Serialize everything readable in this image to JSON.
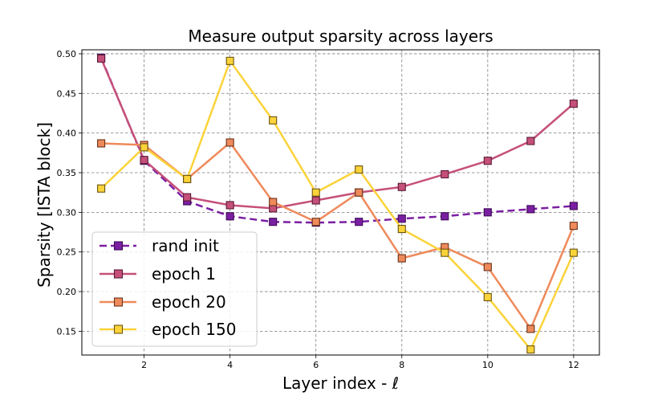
{
  "chart_data": {
    "type": "line",
    "title": "Measure output sparsity across layers",
    "xlabel": "Layer index - ℓ",
    "ylabel": "Sparsity [ISTA block]",
    "x": [
      1,
      2,
      3,
      4,
      5,
      6,
      7,
      8,
      9,
      10,
      11,
      12
    ],
    "xlim": [
      0.55,
      12.6
    ],
    "ylim": [
      0.12,
      0.505
    ],
    "xticks": [
      2,
      4,
      6,
      8,
      10,
      12
    ],
    "yticks": [
      0.15,
      0.2,
      0.25,
      0.3,
      0.35,
      0.4,
      0.45,
      0.5
    ],
    "ytick_labels": [
      "0.15",
      "0.20",
      "0.25",
      "0.30",
      "0.35",
      "0.40",
      "0.45",
      "0.50"
    ],
    "grid": true,
    "legend_position": "lower-left",
    "series": [
      {
        "name": "rand init",
        "color": "#7b1fa2",
        "edge": "#3d0a55",
        "dashed": true,
        "values": [
          0.495,
          0.365,
          0.314,
          0.295,
          0.288,
          0.287,
          0.288,
          0.292,
          0.295,
          0.3,
          0.304,
          0.308
        ]
      },
      {
        "name": "epoch 1",
        "color": "#c5507a",
        "edge": "#5a1a35",
        "dashed": false,
        "values": [
          0.494,
          0.366,
          0.319,
          0.309,
          0.305,
          0.315,
          0.325,
          0.332,
          0.348,
          0.365,
          0.39,
          0.437
        ]
      },
      {
        "name": "epoch 20",
        "color": "#ef8a5b",
        "edge": "#6a3218",
        "dashed": false,
        "values": [
          0.387,
          0.385,
          0.342,
          0.388,
          0.313,
          0.288,
          0.325,
          0.242,
          0.256,
          0.231,
          0.153,
          0.283
        ]
      },
      {
        "name": "epoch 150",
        "color": "#fbd33a",
        "edge": "#6b5510",
        "dashed": false,
        "values": [
          0.33,
          0.382,
          0.342,
          0.491,
          0.416,
          0.325,
          0.354,
          0.279,
          0.249,
          0.193,
          0.127,
          0.249
        ]
      }
    ]
  }
}
